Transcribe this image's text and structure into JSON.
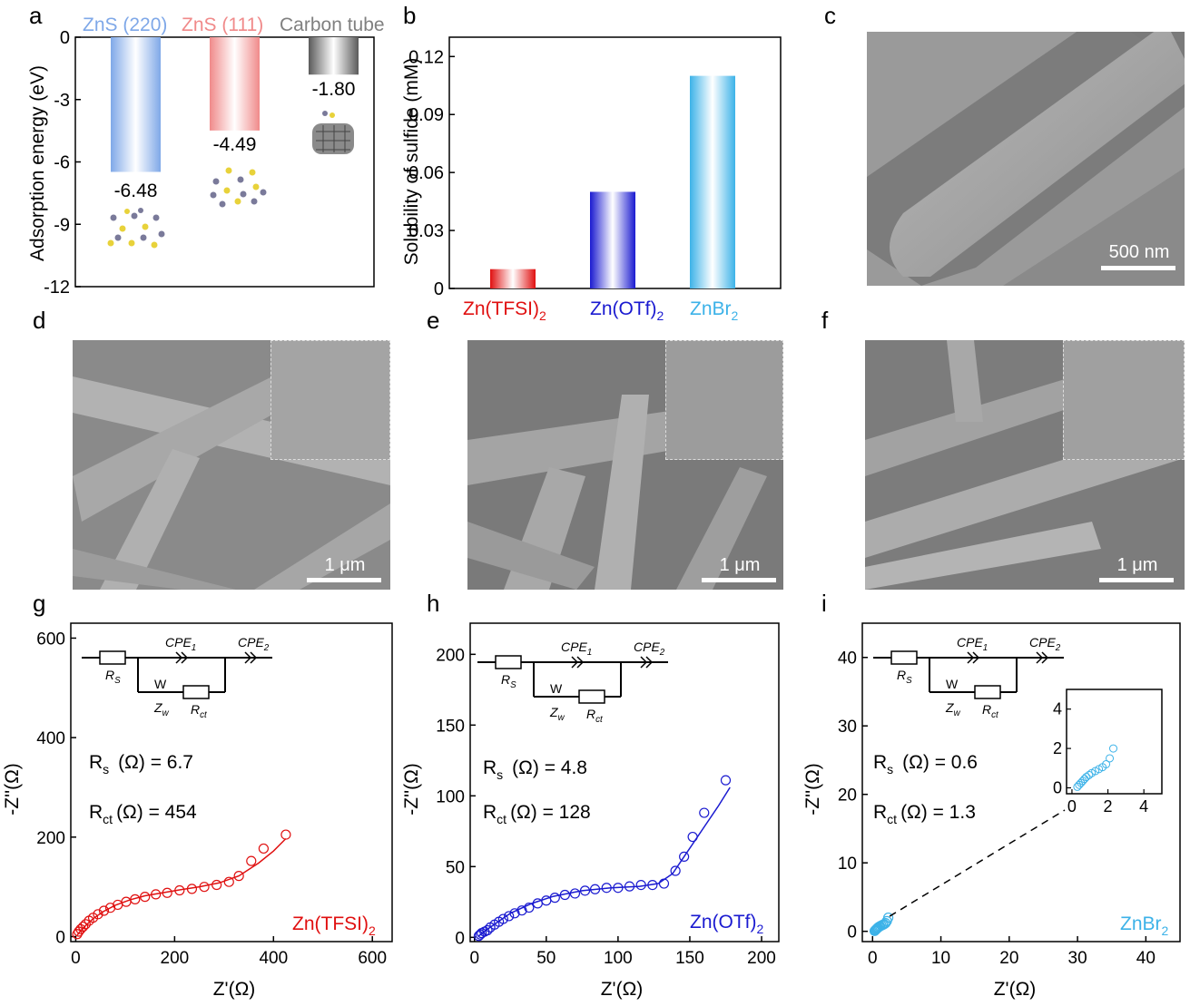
{
  "panels": {
    "a": "a",
    "b": "b",
    "c": "c",
    "d": "d",
    "e": "e",
    "f": "f",
    "g": "g",
    "h": "h",
    "i": "i"
  },
  "colors": {
    "znsa": "#7fa8e8",
    "znsb": "#f08a8a",
    "carbon": "#808080",
    "tfsi": "#e01010",
    "otf": "#1a1ad0",
    "znbr": "#3cb2e8"
  },
  "scalebars": {
    "c": "500 nm",
    "d": "1 μm",
    "e": "1 μm",
    "f": "1 μm"
  },
  "chart_data": [
    {
      "id": "a",
      "type": "bar",
      "legend": [
        "ZnS (220)",
        "ZnS (111)",
        "Carbon tube"
      ],
      "categories": [
        "ZnS (220)",
        "ZnS (111)",
        "Carbon tube"
      ],
      "values": [
        -6.48,
        -4.49,
        -1.8
      ],
      "data_labels": [
        "-6.48",
        "-4.49",
        "-1.80"
      ],
      "ylabel": "Adsorption energy (eV)",
      "ylim": [
        -12,
        0
      ],
      "yticks": [
        "0",
        "-3",
        "-6",
        "-9",
        "-12"
      ]
    },
    {
      "id": "b",
      "type": "bar",
      "categories": [
        "Zn(TFSI)",
        "Zn(OTf)",
        "ZnBr"
      ],
      "category_subscripts": [
        "2",
        "2",
        "2"
      ],
      "values": [
        0.01,
        0.05,
        0.11
      ],
      "ylabel": "Solubility of sulfide (mM)",
      "ylim": [
        0,
        0.13
      ],
      "yticks": [
        "0",
        "0.03",
        "0.06",
        "0.09",
        "0.12"
      ]
    },
    {
      "id": "g",
      "type": "scatter",
      "xlabel": "Z'(Ω)",
      "ylabel": "-Z''(Ω)",
      "xlim": [
        -10,
        640
      ],
      "ylim": [
        -10,
        630
      ],
      "xticks": [
        "0",
        "200",
        "400",
        "600"
      ],
      "yticks": [
        "0",
        "200",
        "400",
        "600"
      ],
      "points_x": [
        3,
        6,
        10,
        15,
        20,
        27,
        35,
        45,
        57,
        70,
        85,
        102,
        120,
        140,
        162,
        185,
        210,
        235,
        260,
        285,
        310,
        330,
        355,
        380,
        425
      ],
      "points_y": [
        5,
        10,
        15,
        20,
        25,
        32,
        38,
        45,
        52,
        58,
        64,
        70,
        75,
        80,
        85,
        88,
        93,
        96,
        100,
        104,
        110,
        122,
        152,
        177,
        205
      ],
      "fit_x": [
        3,
        10,
        20,
        35,
        55,
        80,
        110,
        140,
        175,
        210,
        250,
        290,
        330,
        370,
        400,
        425
      ],
      "fit_y": [
        3,
        12,
        22,
        36,
        50,
        63,
        74,
        82,
        88,
        94,
        100,
        108,
        122,
        148,
        172,
        197
      ],
      "rs": "R",
      "rs_sub": "s",
      "rs_text": "(Ω) = 6.7",
      "rct": "R",
      "rct_sub": "ct",
      "rct_text": "(Ω) = 454",
      "series_label": "Zn(TFSI)",
      "series_sub": "2"
    },
    {
      "id": "h",
      "type": "scatter",
      "xlabel": "Z'(Ω)",
      "ylabel": "-Z''(Ω)",
      "xlim": [
        -3,
        212
      ],
      "ylim": [
        -3,
        222
      ],
      "xticks": [
        "0",
        "50",
        "100",
        "150",
        "200"
      ],
      "yticks": [
        "0",
        "50",
        "100",
        "150",
        "200"
      ],
      "points_x": [
        3,
        4,
        5,
        7,
        9,
        11,
        14,
        17,
        20,
        24,
        28,
        33,
        38,
        44,
        50,
        56,
        63,
        70,
        77,
        84,
        92,
        100,
        108,
        116,
        124,
        132,
        140,
        146,
        152,
        160,
        175
      ],
      "points_y": [
        1,
        2,
        3,
        4,
        5,
        7,
        9,
        11,
        13,
        15,
        17,
        19,
        21,
        24,
        26,
        28,
        30,
        31,
        33,
        34,
        35,
        35,
        36,
        37,
        37,
        38,
        47,
        57,
        71,
        88,
        111
      ],
      "fit_x": [
        3,
        8,
        15,
        25,
        40,
        55,
        75,
        95,
        115,
        128,
        138,
        148,
        160,
        170,
        178
      ],
      "fit_y": [
        1,
        5,
        10,
        17,
        24,
        29,
        33,
        35,
        36,
        38,
        45,
        60,
        78,
        93,
        106
      ],
      "rs": "R",
      "rs_sub": "s",
      "rs_text": "(Ω) = 4.8",
      "rct": "R",
      "rct_sub": "ct",
      "rct_text": "(Ω) = 128",
      "series_label": "Zn(OTf)",
      "series_sub": "2"
    },
    {
      "id": "i",
      "type": "scatter",
      "xlabel": "Z'(Ω)",
      "ylabel": "-Z''(Ω)",
      "xlim": [
        -1.5,
        45
      ],
      "ylim": [
        -1.5,
        45
      ],
      "xticks": [
        "0",
        "10",
        "20",
        "30",
        "40"
      ],
      "yticks": [
        "0",
        "10",
        "20",
        "30",
        "40"
      ],
      "points_x": [
        0.3,
        0.4,
        0.5,
        0.6,
        0.7,
        0.8,
        0.95,
        1.1,
        1.3,
        1.5,
        1.7,
        1.9,
        2.1,
        2.3
      ],
      "points_y": [
        0.05,
        0.15,
        0.25,
        0.35,
        0.45,
        0.55,
        0.65,
        0.75,
        0.85,
        0.95,
        1.05,
        1.2,
        1.5,
        2.0
      ],
      "inset_xticks": [
        "0",
        "2",
        "4"
      ],
      "inset_yticks": [
        "0",
        "2",
        "4"
      ],
      "rs": "R",
      "rs_sub": "s",
      "rs_text": "(Ω) = 0.6",
      "rct": "R",
      "rct_sub": "ct",
      "rct_text": "(Ω) = 1.3",
      "series_label": "ZnBr",
      "series_sub": "2"
    }
  ],
  "circuit": {
    "cpe1": "CPE",
    "cpe1_sub": "1",
    "cpe2": "CPE",
    "cpe2_sub": "2",
    "rs": "R",
    "rs_sub": "S",
    "zw": "Z",
    "zw_sub": "w",
    "rct": "R",
    "rct_sub": "ct",
    "w": "W"
  }
}
